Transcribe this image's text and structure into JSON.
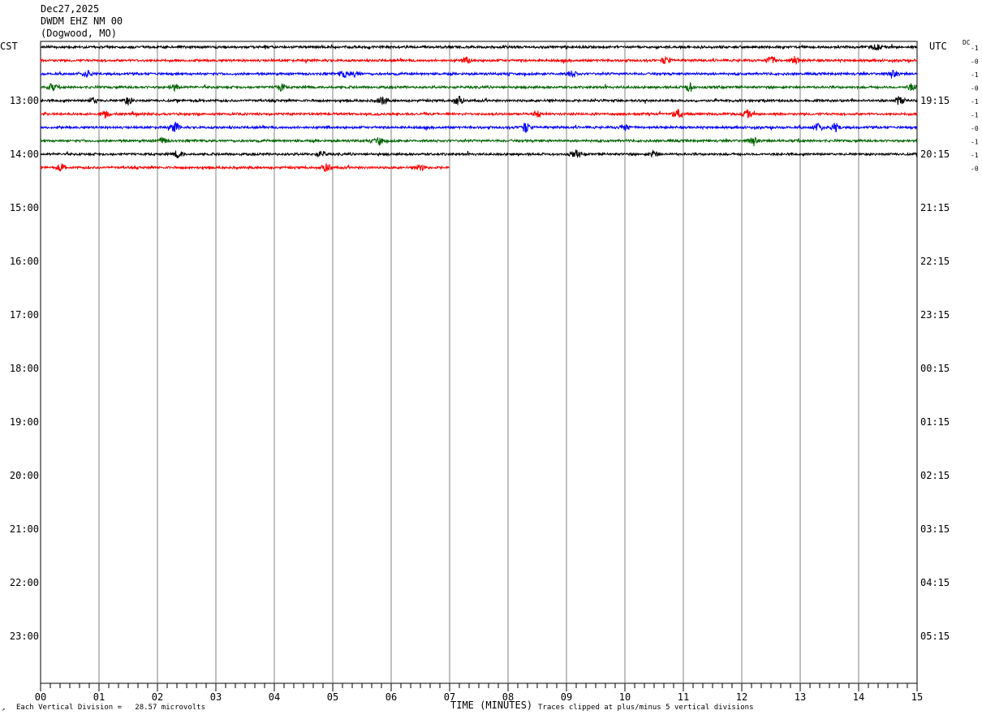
{
  "header": {
    "date": "Dec27,2025",
    "station": "DWDM EHZ NM 00",
    "location": "(Dogwood, MO)"
  },
  "labels": {
    "left_tz": "CST",
    "right_tz": "UTC",
    "dc": "DC"
  },
  "footer": {
    "division": "Each Vertical Division =   28.57 microvolts",
    "xlabel": "TIME (MINUTES)",
    "clip": "Traces clipped at plus/minus 5 vertical divisions",
    "mark": "↗"
  },
  "colors": {
    "trace_cycle": [
      "#000000",
      "#ff0000",
      "#0000ff",
      "#006400"
    ],
    "grid": "#808080",
    "frame": "#000000"
  },
  "chart_data": {
    "type": "line",
    "title": "",
    "xlabel": "TIME (MINUTES)",
    "xlim": [
      0,
      15
    ],
    "x_ticks": [
      "00",
      "01",
      "02",
      "03",
      "04",
      "05",
      "06",
      "07",
      "08",
      "09",
      "10",
      "11",
      "12",
      "13",
      "14",
      "15"
    ],
    "left_hour_labels": [
      "13:00",
      "14:00",
      "15:00",
      "16:00",
      "17:00",
      "18:00",
      "19:00",
      "20:00",
      "21:00",
      "22:00",
      "23:00"
    ],
    "right_hour_labels": [
      "19:15",
      "20:15",
      "21:15",
      "22:15",
      "23:15",
      "00:15",
      "01:15",
      "02:15",
      "03:15",
      "04:15",
      "05:15"
    ],
    "rows_per_hour": 4,
    "traces": [
      {
        "row": 0,
        "start": 0,
        "end": 15,
        "dc": "-1",
        "events": [
          [
            14.3,
            1.6
          ]
        ]
      },
      {
        "row": 1,
        "start": 0,
        "end": 15,
        "dc": "-0",
        "events": [
          [
            10.7,
            2.0
          ],
          [
            12.5,
            2.4
          ],
          [
            12.9,
            2.0
          ],
          [
            7.3,
            1.6
          ]
        ]
      },
      {
        "row": 2,
        "start": 0,
        "end": 15,
        "dc": "-1",
        "events": [
          [
            0.8,
            1.8
          ],
          [
            5.2,
            2.0
          ],
          [
            5.4,
            1.8
          ],
          [
            9.1,
            1.8
          ],
          [
            14.6,
            1.6
          ]
        ]
      },
      {
        "row": 3,
        "start": 0,
        "end": 15,
        "dc": "-0",
        "events": [
          [
            0.2,
            1.8
          ],
          [
            4.1,
            2.0
          ],
          [
            11.1,
            2.4
          ],
          [
            14.9,
            1.8
          ],
          [
            2.3,
            1.6
          ]
        ]
      },
      {
        "row": 4,
        "start": 0,
        "end": 15,
        "dc": "-1",
        "events": [
          [
            1.5,
            2.0
          ],
          [
            5.85,
            2.2
          ],
          [
            7.15,
            2.6
          ],
          [
            14.7,
            2.4
          ],
          [
            0.9,
            1.6
          ]
        ]
      },
      {
        "row": 5,
        "start": 0,
        "end": 15,
        "dc": "-1",
        "events": [
          [
            1.1,
            1.8
          ],
          [
            10.9,
            2.8
          ],
          [
            12.1,
            1.8
          ],
          [
            8.5,
            1.6
          ]
        ]
      },
      {
        "row": 6,
        "start": 0,
        "end": 15,
        "dc": "-0",
        "events": [
          [
            2.3,
            2.6
          ],
          [
            8.3,
            2.8
          ],
          [
            13.3,
            2.4
          ],
          [
            13.6,
            2.2
          ],
          [
            10.0,
            1.8
          ]
        ]
      },
      {
        "row": 7,
        "start": 0,
        "end": 15,
        "dc": "-1",
        "events": [
          [
            2.1,
            1.8
          ],
          [
            5.8,
            2.0
          ],
          [
            12.2,
            1.6
          ]
        ]
      },
      {
        "row": 8,
        "start": 0,
        "end": 15,
        "dc": "-1",
        "events": [
          [
            2.35,
            2.0
          ],
          [
            9.15,
            2.2
          ],
          [
            10.5,
            1.8
          ],
          [
            4.8,
            1.6
          ]
        ]
      },
      {
        "row": 9,
        "start": 0,
        "end": 7,
        "dc": "-0",
        "events": [
          [
            0.35,
            2.0
          ],
          [
            4.9,
            2.6
          ],
          [
            6.5,
            1.6
          ]
        ]
      }
    ]
  }
}
